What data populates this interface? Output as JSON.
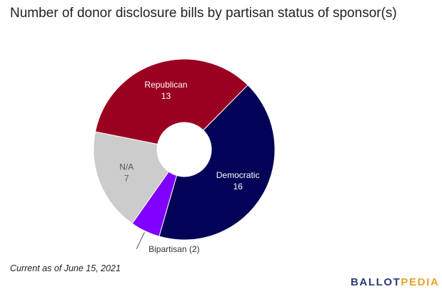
{
  "title": "Number of donor disclosure bills by partisan status of sponsor(s)",
  "footnote": "Current as of June 15, 2021",
  "logo": {
    "part1": "BALLOT",
    "part2": "PEDIA"
  },
  "chart_data": {
    "type": "pie",
    "donut": true,
    "title": "Number of donor disclosure bills by partisan status of sponsor(s)",
    "slices": [
      {
        "label": "Democratic",
        "value": 16,
        "value_text": "16",
        "color": "#020356",
        "text_color": "#ffffff"
      },
      {
        "label": "Bipartisan (2)",
        "value": 2,
        "value_text": "",
        "color": "#7f00ff",
        "text_color": "#333333",
        "callout": true
      },
      {
        "label": "N/A",
        "value": 7,
        "value_text": "7",
        "color": "#cccccc",
        "text_color": "#555555"
      },
      {
        "label": "Republican",
        "value": 13,
        "value_text": "13",
        "color": "#9a0020",
        "text_color": "#ffffff"
      }
    ]
  }
}
